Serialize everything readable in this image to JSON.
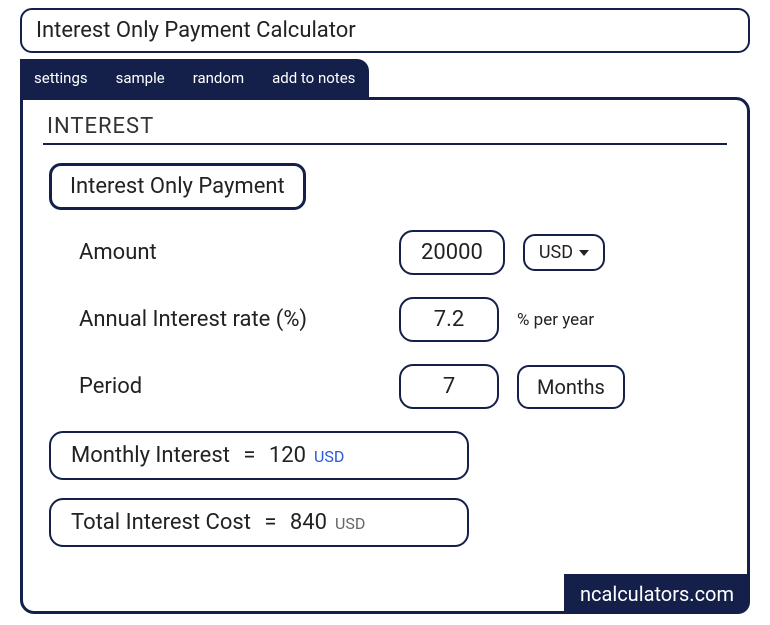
{
  "title": "Interest Only Payment Calculator",
  "tabs": [
    "settings",
    "sample",
    "random",
    "add to notes"
  ],
  "section": "INTEREST",
  "subtitle": "Interest Only Payment",
  "fields": {
    "amount": {
      "label": "Amount",
      "value": "20000",
      "currency": "USD"
    },
    "rate": {
      "label": "Annual Interest rate (%)",
      "value": "7.2",
      "unit": "% per year"
    },
    "period": {
      "label": "Period",
      "value": "7",
      "unit": "Months"
    }
  },
  "results": {
    "monthly": {
      "label": "Monthly Interest",
      "value": "120",
      "currency": "USD"
    },
    "total": {
      "label": "Total Interest Cost",
      "value": "840",
      "currency": "USD"
    }
  },
  "brand": "ncalculators.com",
  "colors": {
    "accent": "#14204a",
    "link_blue": "#2a5ad7",
    "text": "#222222",
    "background": "#ffffff"
  }
}
